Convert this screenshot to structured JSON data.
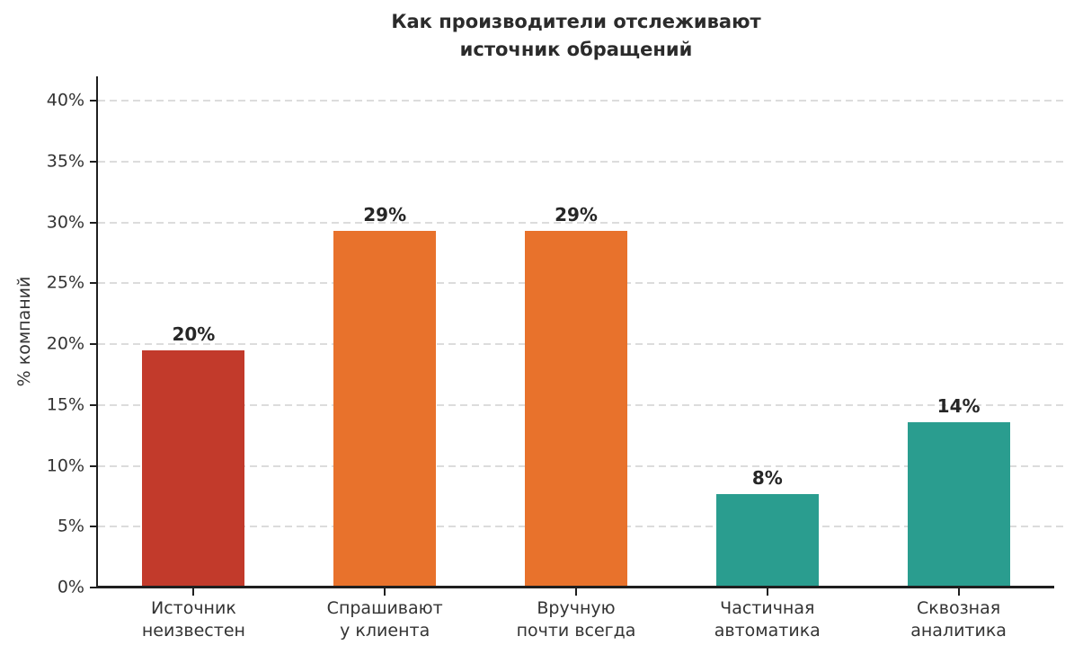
{
  "chart_data": {
    "type": "bar",
    "title": "Как производители отслеживают источник обращений",
    "title_lines": [
      "Как производители отслеживают",
      "источник обращений"
    ],
    "ylabel": "% компаний",
    "xlabel": "",
    "categories": [
      "Источник\nнеизвестен",
      "Спрашивают\nу клиента",
      "Вручную\nпочти всегда",
      "Частичная\nавтоматика",
      "Сквозная\nаналитика"
    ],
    "values": [
      19.5,
      29.3,
      29.3,
      7.7,
      13.6
    ],
    "value_labels": [
      "20%",
      "29%",
      "29%",
      "8%",
      "14%"
    ],
    "bar_colors": [
      "#c23a2b",
      "#e8722c",
      "#e8722c",
      "#2a9d8f",
      "#2a9d8f"
    ],
    "ylim": [
      0,
      42
    ],
    "ytick_values": [
      0,
      5,
      10,
      15,
      20,
      25,
      30,
      35,
      40
    ],
    "ytick_labels": [
      "0%",
      "5%",
      "10%",
      "15%",
      "20%",
      "25%",
      "30%",
      "35%",
      "40%"
    ],
    "grid": "horizontal-dashed",
    "legend": "none",
    "colors": {
      "grid": "#dcdcdc",
      "axis": "#1f1f1f",
      "tick_text": "#333333",
      "title_text": "#2b2b2b",
      "value_label_text": "#262626",
      "background": "#ffffff"
    }
  }
}
